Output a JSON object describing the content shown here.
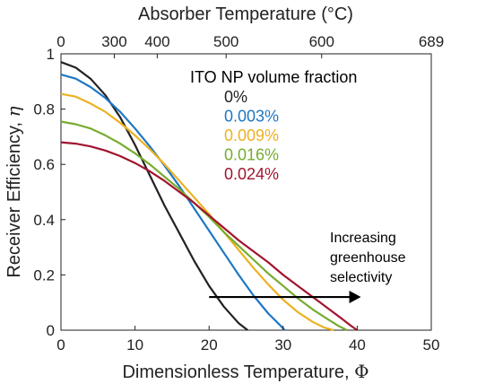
{
  "chart_data": {
    "type": "line",
    "xlabel_main": "Dimensionless Temperature, ",
    "xlabel_symbol": "Φ",
    "ylabel_main": "Receiver Efficiency, ",
    "ylabel_symbol": "η",
    "top_axis_label": "Absorber Temperature (°C)",
    "xlim": [
      0,
      50
    ],
    "ylim": [
      0,
      1
    ],
    "x_ticks": [
      0,
      10,
      20,
      30,
      40,
      50
    ],
    "y_ticks": [
      0,
      0.2,
      0.4,
      0.6,
      0.8,
      1
    ],
    "y_tick_labels": [
      "0",
      "0.2",
      "0.4",
      "0.6",
      "0.8",
      "1"
    ],
    "top_ticks": [
      {
        "label": "0",
        "x": 0
      },
      {
        "label": "300",
        "x": 7.2
      },
      {
        "label": "400",
        "x": 13
      },
      {
        "label": "500",
        "x": 22.3
      },
      {
        "label": "600",
        "x": 35.2
      },
      {
        "label": "689",
        "x": 50
      }
    ],
    "legend_title": "ITO NP volume fraction",
    "series": [
      {
        "name": "0%",
        "color": "#222222",
        "points": [
          [
            0,
            0.97
          ],
          [
            2,
            0.95
          ],
          [
            4,
            0.91
          ],
          [
            6,
            0.85
          ],
          [
            8,
            0.77
          ],
          [
            10,
            0.67
          ],
          [
            12,
            0.56
          ],
          [
            14,
            0.45
          ],
          [
            16,
            0.35
          ],
          [
            18,
            0.25
          ],
          [
            20,
            0.16
          ],
          [
            22,
            0.085
          ],
          [
            24,
            0.025
          ],
          [
            25.2,
            0
          ]
        ]
      },
      {
        "name": "0.003%",
        "color": "#1f77c4",
        "points": [
          [
            0,
            0.925
          ],
          [
            2,
            0.91
          ],
          [
            4,
            0.88
          ],
          [
            6,
            0.84
          ],
          [
            8,
            0.79
          ],
          [
            10,
            0.73
          ],
          [
            12,
            0.665
          ],
          [
            14,
            0.595
          ],
          [
            16,
            0.52
          ],
          [
            18,
            0.44
          ],
          [
            20,
            0.36
          ],
          [
            22,
            0.28
          ],
          [
            24,
            0.2
          ],
          [
            26,
            0.125
          ],
          [
            28,
            0.06
          ],
          [
            29.5,
            0.02
          ],
          [
            30.2,
            0
          ]
        ]
      },
      {
        "name": "0.009%",
        "color": "#edb120",
        "points": [
          [
            0,
            0.855
          ],
          [
            2,
            0.845
          ],
          [
            4,
            0.82
          ],
          [
            6,
            0.79
          ],
          [
            8,
            0.75
          ],
          [
            10,
            0.705
          ],
          [
            12,
            0.655
          ],
          [
            14,
            0.6
          ],
          [
            16,
            0.54
          ],
          [
            18,
            0.48
          ],
          [
            20,
            0.42
          ],
          [
            22,
            0.355
          ],
          [
            24,
            0.29
          ],
          [
            26,
            0.225
          ],
          [
            28,
            0.165
          ],
          [
            30,
            0.11
          ],
          [
            32,
            0.065
          ],
          [
            34,
            0.03
          ],
          [
            35.5,
            0.01
          ],
          [
            36.8,
            0
          ]
        ]
      },
      {
        "name": "0.016%",
        "color": "#77ac30",
        "points": [
          [
            0,
            0.755
          ],
          [
            2,
            0.745
          ],
          [
            4,
            0.73
          ],
          [
            6,
            0.705
          ],
          [
            8,
            0.675
          ],
          [
            10,
            0.64
          ],
          [
            12,
            0.6
          ],
          [
            14,
            0.555
          ],
          [
            16,
            0.51
          ],
          [
            18,
            0.46
          ],
          [
            20,
            0.41
          ],
          [
            22,
            0.355
          ],
          [
            24,
            0.305
          ],
          [
            26,
            0.255
          ],
          [
            28,
            0.205
          ],
          [
            30,
            0.16
          ],
          [
            32,
            0.115
          ],
          [
            34,
            0.075
          ],
          [
            36,
            0.04
          ],
          [
            37.5,
            0.015
          ],
          [
            38.6,
            0
          ]
        ]
      },
      {
        "name": "0.024%",
        "color": "#a2142f",
        "points": [
          [
            0,
            0.68
          ],
          [
            2,
            0.675
          ],
          [
            4,
            0.665
          ],
          [
            6,
            0.65
          ],
          [
            8,
            0.63
          ],
          [
            10,
            0.605
          ],
          [
            12,
            0.575
          ],
          [
            14,
            0.54
          ],
          [
            16,
            0.5
          ],
          [
            18,
            0.46
          ],
          [
            20,
            0.415
          ],
          [
            22,
            0.37
          ],
          [
            24,
            0.325
          ],
          [
            26,
            0.285
          ],
          [
            28,
            0.245
          ],
          [
            30,
            0.2
          ],
          [
            32,
            0.16
          ],
          [
            34,
            0.12
          ],
          [
            36,
            0.08
          ],
          [
            38,
            0.04
          ],
          [
            39.2,
            0.015
          ],
          [
            40,
            0
          ]
        ]
      }
    ],
    "annotation": {
      "lines": [
        "Increasing",
        "greenhouse",
        "selectivity"
      ],
      "arrow_from": [
        20,
        0.12
      ],
      "arrow_to": [
        40.5,
        0.12
      ]
    }
  }
}
